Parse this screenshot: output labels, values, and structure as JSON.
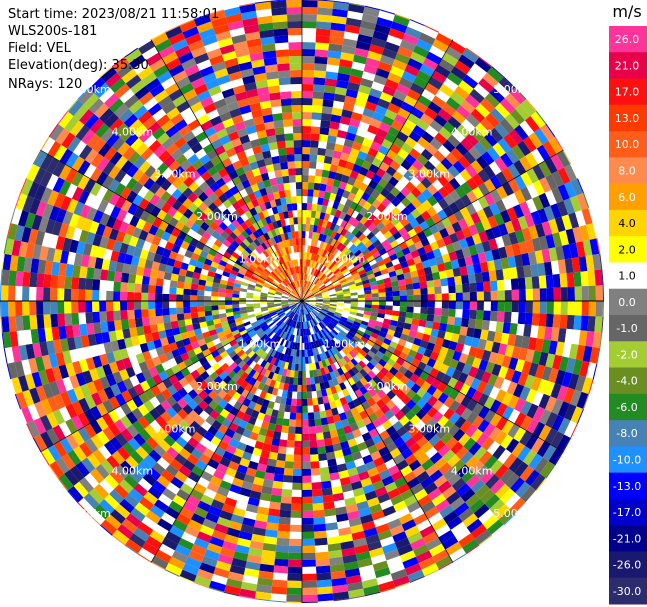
{
  "header": {
    "start_time": "Start time: 2023/08/21 11:58:01",
    "instrument": "WLS200s-181",
    "field": "Field: VEL",
    "elevation": "Elevation(deg): 35.30",
    "nrays": "NRays: 120"
  },
  "chart_data": {
    "type": "heatmap",
    "projection": "polar",
    "field": "VEL",
    "n_rays": 120,
    "range_ring_labels": [
      "1.00km",
      "2.00km",
      "3.00km",
      "4.00km",
      "5.00km",
      "6.00km"
    ],
    "colorbar": {
      "unit": "m/s",
      "ticks": [
        "26.0",
        "21.0",
        "17.0",
        "13.0",
        "10.0",
        "8.0",
        "6.0",
        "4.0",
        "2.0",
        "1.0",
        "0.0",
        "-1.0",
        "-2.0",
        "-4.0",
        "-6.0",
        "-8.0",
        "-10.0",
        "-13.0",
        "-17.0",
        "-21.0",
        "-26.0",
        "-30.0"
      ],
      "colors": [
        "#ff3399",
        "#e8004a",
        "#ff1010",
        "#ff3a00",
        "#ff5e1a",
        "#ff8a4d",
        "#ffa000",
        "#ffd400",
        "#ffff00",
        "#ffffff",
        "#808080",
        "#666666",
        "#a4cc33",
        "#6b8e23",
        "#228b22",
        "#4682b4",
        "#1e90ff",
        "#0000ff",
        "#0000cd",
        "#00008b",
        "#191970",
        "#2b2b6e"
      ]
    }
  }
}
